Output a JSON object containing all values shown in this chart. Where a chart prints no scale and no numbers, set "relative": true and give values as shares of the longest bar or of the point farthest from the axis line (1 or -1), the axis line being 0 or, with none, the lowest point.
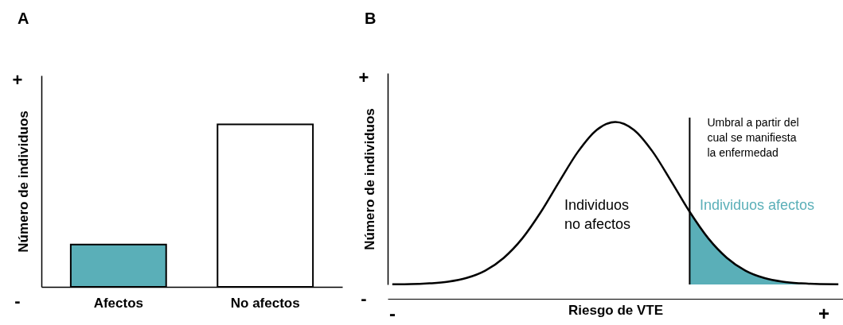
{
  "chart_data": [
    {
      "type": "bar",
      "title": "A",
      "categories": [
        "Afectos",
        "No afectos"
      ],
      "values": [
        0.26,
        1
      ],
      "colors": [
        "#5aafb8",
        "#ffffff"
      ],
      "relative": true,
      "ylabel": "Número de individuos",
      "annotations": [
        "+",
        "-"
      ]
    },
    {
      "type": "line",
      "title": "B",
      "relative": true,
      "xlabel": "Riesgo de VTE",
      "ylabel": "Número de individuos",
      "categories": [
        null,
        null,
        null,
        null,
        null,
        null,
        null,
        null,
        null,
        null,
        null,
        null,
        null,
        null,
        null,
        null,
        null,
        null,
        null,
        null,
        null,
        null,
        null,
        null,
        null
      ],
      "series": [
        {
          "color": "#000000",
          "values": [
            0.001,
            0.002,
            0.007,
            0.017,
            0.04,
            0.085,
            0.164,
            0.284,
            0.447,
            0.636,
            0.818,
            0.951,
            1,
            0.951,
            0.818,
            0.636,
            0.447,
            0.284,
            0.164,
            0.085,
            0.04,
            0.017,
            0.007,
            0.002,
            0.001
          ]
        },
        {
          "type": "area",
          "color": "#5aafb8",
          "values": [
            null,
            null,
            null,
            null,
            null,
            null,
            null,
            null,
            null,
            null,
            null,
            null,
            null,
            null,
            null,
            null,
            0.447,
            0.284,
            0.164,
            0.085,
            0.04,
            0.017,
            0.007,
            0.002,
            0.001
          ]
        }
      ],
      "ref_lines": [
        {
          "axis": "x",
          "label": "Umbral a partir del\ncual se manifiesta\nla enfermedad",
          "color": "#000000"
        }
      ],
      "annotations": [
        "+",
        "-",
        "Individuos\nno afectos",
        "Individuos afectos",
        "-",
        "+"
      ]
    }
  ]
}
